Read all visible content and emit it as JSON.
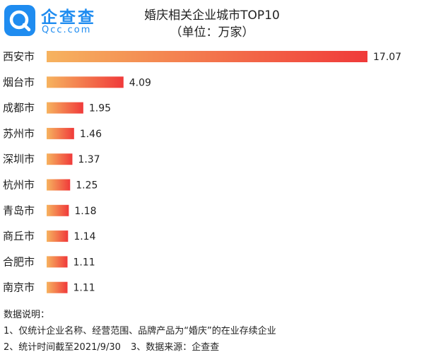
{
  "brand": {
    "name_cn": "企查查",
    "name_en": "Qcc.com",
    "color": "#1f8cf0"
  },
  "header": {
    "title": "婚庆相关企业城市TOP10",
    "subtitle": "（单位：万家）"
  },
  "chart_data": {
    "type": "bar",
    "orientation": "horizontal",
    "title": "婚庆相关企业城市TOP10",
    "subtitle": "（单位：万家）",
    "categories": [
      "西安市",
      "烟台市",
      "成都市",
      "苏州市",
      "深圳市",
      "杭州市",
      "青岛市",
      "商丘市",
      "合肥市",
      "南京市"
    ],
    "values": [
      17.07,
      4.09,
      1.95,
      1.46,
      1.37,
      1.25,
      1.18,
      1.14,
      1.11,
      1.11
    ],
    "value_labels": [
      "17.07",
      "4.09",
      "1.95",
      "1.46",
      "1.37",
      "1.25",
      "1.18",
      "1.14",
      "1.11",
      "1.11"
    ],
    "xlim": [
      0,
      17.07
    ],
    "grid": false,
    "bar_gradient": [
      "#f6b35f",
      "#f03a3a"
    ]
  },
  "notes": {
    "heading": "数据说明：",
    "item1": "1、仅统计企业名称、经营范围、品牌产品为“婚庆”的在业存续企业",
    "item2": "2、统计时间截至2021/9/30",
    "item3": "3、数据来源：企查查"
  }
}
